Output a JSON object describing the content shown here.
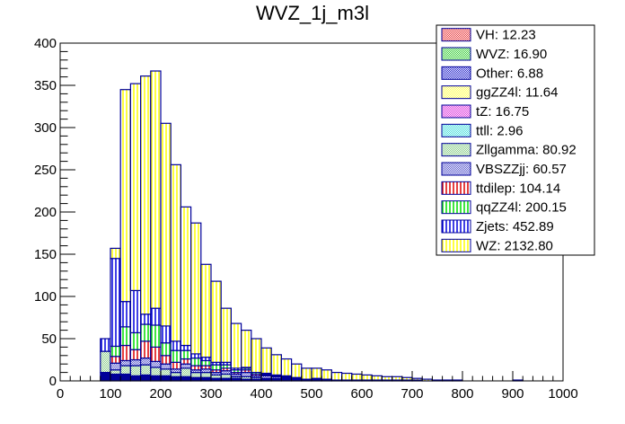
{
  "chart_data": {
    "type": "bar",
    "stacked": true,
    "title": "WVZ_1j_m3l",
    "xlabel": "",
    "ylabel": "",
    "xlim": [
      0,
      1000
    ],
    "ylim": [
      0,
      400
    ],
    "x_ticks": [
      "0",
      "100",
      "200",
      "300",
      "400",
      "500",
      "600",
      "700",
      "800",
      "900",
      "1000"
    ],
    "y_ticks": [
      "0",
      "50",
      "100",
      "150",
      "200",
      "250",
      "300",
      "350",
      "400"
    ],
    "bin_edges_start": 80,
    "bin_width": 20,
    "legend_position": "top-right",
    "legend": [
      {
        "label": "VH: 12.23",
        "color": "#e8383b",
        "pattern": "hatch"
      },
      {
        "label": "WVZ: 16.90",
        "color": "#33cc33",
        "pattern": "hatch"
      },
      {
        "label": "Other: 6.88",
        "color": "#2222cc",
        "pattern": "hatch"
      },
      {
        "label": "ggZZ4l: 11.64",
        "color": "#ffff55",
        "pattern": "hatch"
      },
      {
        "label": "tZ: 16.75",
        "color": "#dd33dd",
        "pattern": "hatch"
      },
      {
        "label": "ttll: 2.96",
        "color": "#44dddd",
        "pattern": "hatch"
      },
      {
        "label": "Zllgamma: 80.92",
        "color": "#88cc88",
        "pattern": "hatch"
      },
      {
        "label": "VBSZZjj: 60.57",
        "color": "#5555cc",
        "pattern": "hatch"
      },
      {
        "label": "ttdilep: 104.14",
        "color": "#dd0000",
        "pattern": "vlines"
      },
      {
        "label": "qqZZ4l: 200.15",
        "color": "#00dd00",
        "pattern": "vlines"
      },
      {
        "label": "Zjets: 452.89",
        "color": "#0000dd",
        "pattern": "vlines"
      },
      {
        "label": "WZ: 2132.80",
        "color": "#ffff00",
        "pattern": "vlines"
      }
    ],
    "series": [
      {
        "name": "Other+small",
        "color": "#000099",
        "values": [
          10,
          8,
          8,
          6,
          7,
          6,
          6,
          5,
          5,
          4,
          4,
          3,
          3,
          3,
          2,
          2,
          2,
          2,
          1,
          1,
          1,
          1,
          1,
          1,
          1,
          1,
          1,
          1,
          1,
          1,
          1,
          1,
          0,
          0,
          1,
          0,
          0,
          0,
          0,
          0,
          0,
          1,
          0,
          0,
          0,
          0
        ]
      },
      {
        "name": "Zllgamma",
        "color": "#88cc88",
        "values": [
          25,
          5,
          10,
          12,
          12,
          10,
          8,
          5,
          10,
          6,
          6,
          4,
          5,
          2,
          3,
          2,
          1,
          1,
          1,
          1,
          0,
          1,
          0,
          0,
          0,
          0,
          0,
          0,
          0,
          0,
          0,
          0,
          0,
          0,
          0,
          0,
          0,
          0,
          0,
          0,
          0,
          0,
          0,
          0,
          0,
          0
        ]
      },
      {
        "name": "VBSZZjj",
        "color": "#5555cc",
        "values": [
          0,
          8,
          6,
          7,
          8,
          7,
          6,
          4,
          5,
          3,
          4,
          3,
          4,
          3,
          5,
          2,
          3,
          2,
          1,
          1,
          1,
          1,
          1,
          0,
          0,
          0,
          0,
          0,
          0,
          0,
          0,
          0,
          0,
          0,
          0,
          0,
          0,
          0,
          0,
          0,
          0,
          0,
          0,
          0,
          0,
          0
        ]
      },
      {
        "name": "ttdilep",
        "color": "#dd0000",
        "values": [
          0,
          8,
          18,
          12,
          20,
          17,
          10,
          8,
          6,
          5,
          4,
          3,
          3,
          2,
          3,
          2,
          1,
          1,
          1,
          0,
          0,
          0,
          0,
          0,
          0,
          0,
          0,
          0,
          0,
          0,
          0,
          0,
          0,
          0,
          0,
          0,
          0,
          0,
          0,
          0,
          0,
          0,
          0,
          0,
          0,
          0
        ]
      },
      {
        "name": "qqZZ4l",
        "color": "#00dd00",
        "values": [
          0,
          12,
          22,
          20,
          20,
          26,
          15,
          14,
          10,
          9,
          6,
          6,
          4,
          3,
          2,
          2,
          1,
          1,
          1,
          1,
          0,
          0,
          0,
          0,
          0,
          0,
          0,
          0,
          0,
          0,
          0,
          0,
          0,
          0,
          0,
          0,
          0,
          0,
          0,
          0,
          0,
          0,
          0,
          0,
          0,
          0
        ]
      },
      {
        "name": "Zjets",
        "color": "#0000dd",
        "values": [
          15,
          104,
          30,
          50,
          12,
          20,
          20,
          11,
          6,
          5,
          4,
          3,
          3,
          2,
          1,
          0,
          1,
          0,
          1,
          0,
          0,
          0,
          0,
          0,
          0,
          0,
          0,
          0,
          0,
          0,
          0,
          0,
          0,
          0,
          0,
          0,
          0,
          0,
          0,
          0,
          0,
          0,
          0,
          0,
          0,
          0
        ]
      },
      {
        "name": "WZ",
        "color": "#ffff00",
        "values": [
          0,
          12,
          251,
          245,
          282,
          281,
          240,
          209,
          164,
          155,
          110,
          96,
          64,
          53,
          44,
          40,
          30,
          24,
          20,
          16,
          13,
          12,
          11,
          9,
          8,
          7,
          6,
          5,
          4,
          4,
          3,
          2,
          2,
          1,
          0,
          1,
          0,
          0,
          0,
          0,
          0,
          0,
          0,
          0,
          0,
          0
        ]
      }
    ]
  }
}
